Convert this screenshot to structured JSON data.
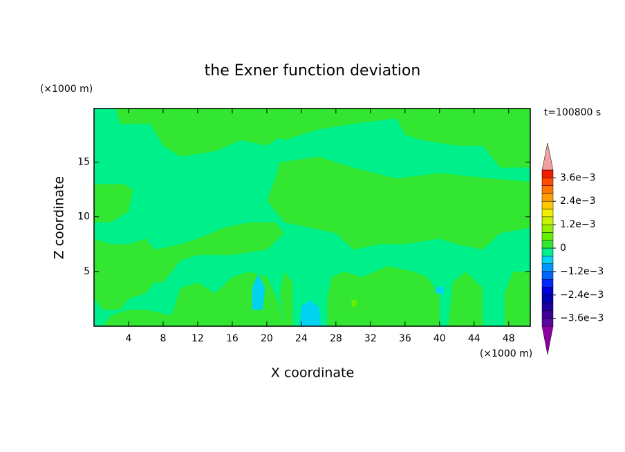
{
  "chart_data": {
    "type": "contour",
    "title": "the Exner function deviation",
    "xlabel": "X coordinate",
    "ylabel": "Z coordinate",
    "x_unit": "(×1000 m)",
    "y_unit": "(×1000 m)",
    "annotation": "t=100800 s",
    "xlim": [
      0,
      50.5
    ],
    "ylim": [
      0,
      19.9
    ],
    "xticks": [
      4,
      8,
      12,
      16,
      20,
      24,
      28,
      32,
      36,
      40,
      44,
      48
    ],
    "yticks": [
      5,
      10,
      15
    ],
    "levels": [
      -0.004,
      -0.0036,
      -0.0032,
      -0.0028,
      -0.0024,
      -0.002,
      -0.0016,
      -0.0012,
      -0.0008,
      -0.0004,
      0,
      0.0004,
      0.0008,
      0.0012,
      0.0016,
      0.002,
      0.0024,
      0.0028,
      0.0032,
      0.0036,
      0.004
    ],
    "colors": [
      "#5a0aa0",
      "#3c0096",
      "#1e00a0",
      "#0000b4",
      "#0000dc",
      "#0028ff",
      "#0064ff",
      "#0096ff",
      "#00d2f0",
      "#00f08c",
      "#32e632",
      "#64f000",
      "#96f000",
      "#c8f000",
      "#f0f000",
      "#ffc800",
      "#ffa000",
      "#ff7800",
      "#ff4b00",
      "#f01e00"
    ],
    "under_color": "#8c00a0",
    "over_color": "#f0a0a0",
    "colorbar_ticks": [
      {
        "value": -0.0036,
        "label": "−3.6e−3"
      },
      {
        "value": -0.0024,
        "label": "−2.4e−3"
      },
      {
        "value": -0.0012,
        "label": "−1.2e−3"
      },
      0,
      {
        "value": 0.0012,
        "label": "1.2e−3"
      },
      {
        "value": 0.0024,
        "label": "2.4e−3"
      },
      {
        "value": 0.0036,
        "label": "3.6e−3"
      }
    ]
  }
}
